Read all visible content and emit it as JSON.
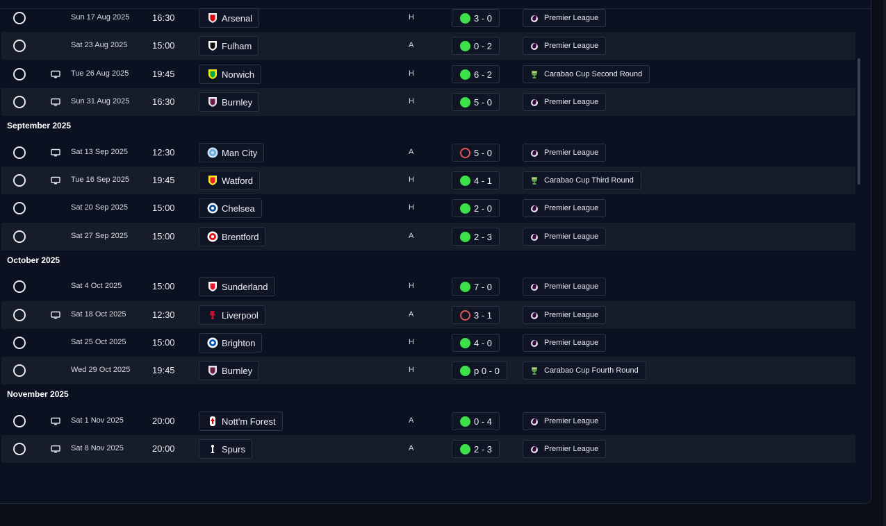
{
  "fixtures": [
    {
      "date": "Sun 17 Aug 2025",
      "time": "16:30",
      "opponent": "Arsenal",
      "crest": "arsenal",
      "venue": "H",
      "result": "win",
      "score": "3 - 0",
      "competition": "Premier League",
      "comp_icon": "premier-league",
      "tv": false
    },
    {
      "date": "Sat 23 Aug 2025",
      "time": "15:00",
      "opponent": "Fulham",
      "crest": "fulham",
      "venue": "A",
      "result": "win",
      "score": "0 - 2",
      "competition": "Premier League",
      "comp_icon": "premier-league",
      "tv": false
    },
    {
      "date": "Tue 26 Aug 2025",
      "time": "19:45",
      "opponent": "Norwich",
      "crest": "norwich",
      "venue": "H",
      "result": "win",
      "score": "6 - 2",
      "competition": "Carabao Cup Second Round",
      "comp_icon": "carabao-cup",
      "tv": true
    },
    {
      "date": "Sun 31 Aug 2025",
      "time": "16:30",
      "opponent": "Burnley",
      "crest": "burnley",
      "venue": "H",
      "result": "win",
      "score": "5 - 0",
      "competition": "Premier League",
      "comp_icon": "premier-league",
      "tv": true
    },
    {
      "month": "September 2025"
    },
    {
      "date": "Sat 13 Sep 2025",
      "time": "12:30",
      "opponent": "Man City",
      "crest": "mancity",
      "venue": "A",
      "result": "loss",
      "score": "5 - 0",
      "competition": "Premier League",
      "comp_icon": "premier-league",
      "tv": true
    },
    {
      "date": "Tue 16 Sep 2025",
      "time": "19:45",
      "opponent": "Watford",
      "crest": "watford",
      "venue": "H",
      "result": "win",
      "score": "4 - 1",
      "competition": "Carabao Cup Third Round",
      "comp_icon": "carabao-cup",
      "tv": true
    },
    {
      "date": "Sat 20 Sep 2025",
      "time": "15:00",
      "opponent": "Chelsea",
      "crest": "chelsea",
      "venue": "H",
      "result": "win",
      "score": "2 - 0",
      "competition": "Premier League",
      "comp_icon": "premier-league",
      "tv": false
    },
    {
      "date": "Sat 27 Sep 2025",
      "time": "15:00",
      "opponent": "Brentford",
      "crest": "brentford",
      "venue": "A",
      "result": "win",
      "score": "2 - 3",
      "competition": "Premier League",
      "comp_icon": "premier-league",
      "tv": false
    },
    {
      "month": "October 2025"
    },
    {
      "date": "Sat 4 Oct 2025",
      "time": "15:00",
      "opponent": "Sunderland",
      "crest": "sunderland",
      "venue": "H",
      "result": "win",
      "score": "7 - 0",
      "competition": "Premier League",
      "comp_icon": "premier-league",
      "tv": false
    },
    {
      "date": "Sat 18 Oct 2025",
      "time": "12:30",
      "opponent": "Liverpool",
      "crest": "liverpool",
      "venue": "A",
      "result": "loss",
      "score": "3 - 1",
      "competition": "Premier League",
      "comp_icon": "premier-league",
      "tv": true
    },
    {
      "date": "Sat 25 Oct 2025",
      "time": "15:00",
      "opponent": "Brighton",
      "crest": "brighton",
      "venue": "H",
      "result": "win",
      "score": "4 - 0",
      "competition": "Premier League",
      "comp_icon": "premier-league",
      "tv": false
    },
    {
      "date": "Wed 29 Oct 2025",
      "time": "19:45",
      "opponent": "Burnley",
      "crest": "burnley",
      "venue": "H",
      "result": "win",
      "score": "p 0 - 0",
      "competition": "Carabao Cup Fourth Round",
      "comp_icon": "carabao-cup",
      "tv": false
    },
    {
      "month": "November 2025"
    },
    {
      "date": "Sat 1 Nov 2025",
      "time": "20:00",
      "opponent": "Nott'm Forest",
      "crest": "forest",
      "venue": "A",
      "result": "win",
      "score": "0 - 4",
      "competition": "Premier League",
      "comp_icon": "premier-league",
      "tv": true
    },
    {
      "date": "Sat 8 Nov 2025",
      "time": "20:00",
      "opponent": "Spurs",
      "crest": "spurs",
      "venue": "A",
      "result": "win",
      "score": "2 - 3",
      "competition": "Premier League",
      "comp_icon": "premier-league",
      "tv": true
    }
  ],
  "colors": {
    "win": "#3ee04a",
    "loss": "#e05656",
    "row_alt": "#161c28",
    "background": "#0b1120"
  }
}
